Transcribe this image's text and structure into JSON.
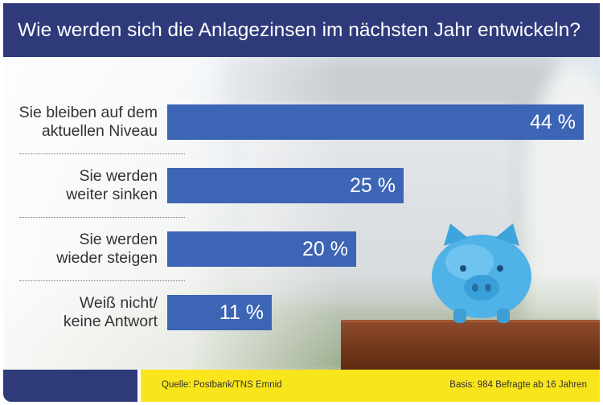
{
  "title": "Wie werden sich die Anlagezinsen im nächsten Jahr entwickeln?",
  "chart_data": {
    "type": "bar",
    "orientation": "horizontal",
    "categories": [
      [
        "Sie bleiben auf dem",
        "aktuellen Niveau"
      ],
      [
        "Sie werden",
        "weiter sinken"
      ],
      [
        "Sie werden",
        "wieder steigen"
      ],
      [
        "Weiß nicht/",
        "keine Antwort"
      ]
    ],
    "values": [
      44,
      25,
      20,
      11
    ],
    "value_labels": [
      "44 %",
      "25 %",
      "20 %",
      "11 %"
    ],
    "unit": "%",
    "bar_color": "#3d65b6",
    "xlim": [
      0,
      44
    ]
  },
  "footer": {
    "source": "Quelle: Postbank/TNS Emnid",
    "basis": "Basis: 984 Befragte ab 16 Jahren"
  },
  "colors": {
    "header": "#2f3a7b",
    "footer_accent": "#f9e51c"
  }
}
